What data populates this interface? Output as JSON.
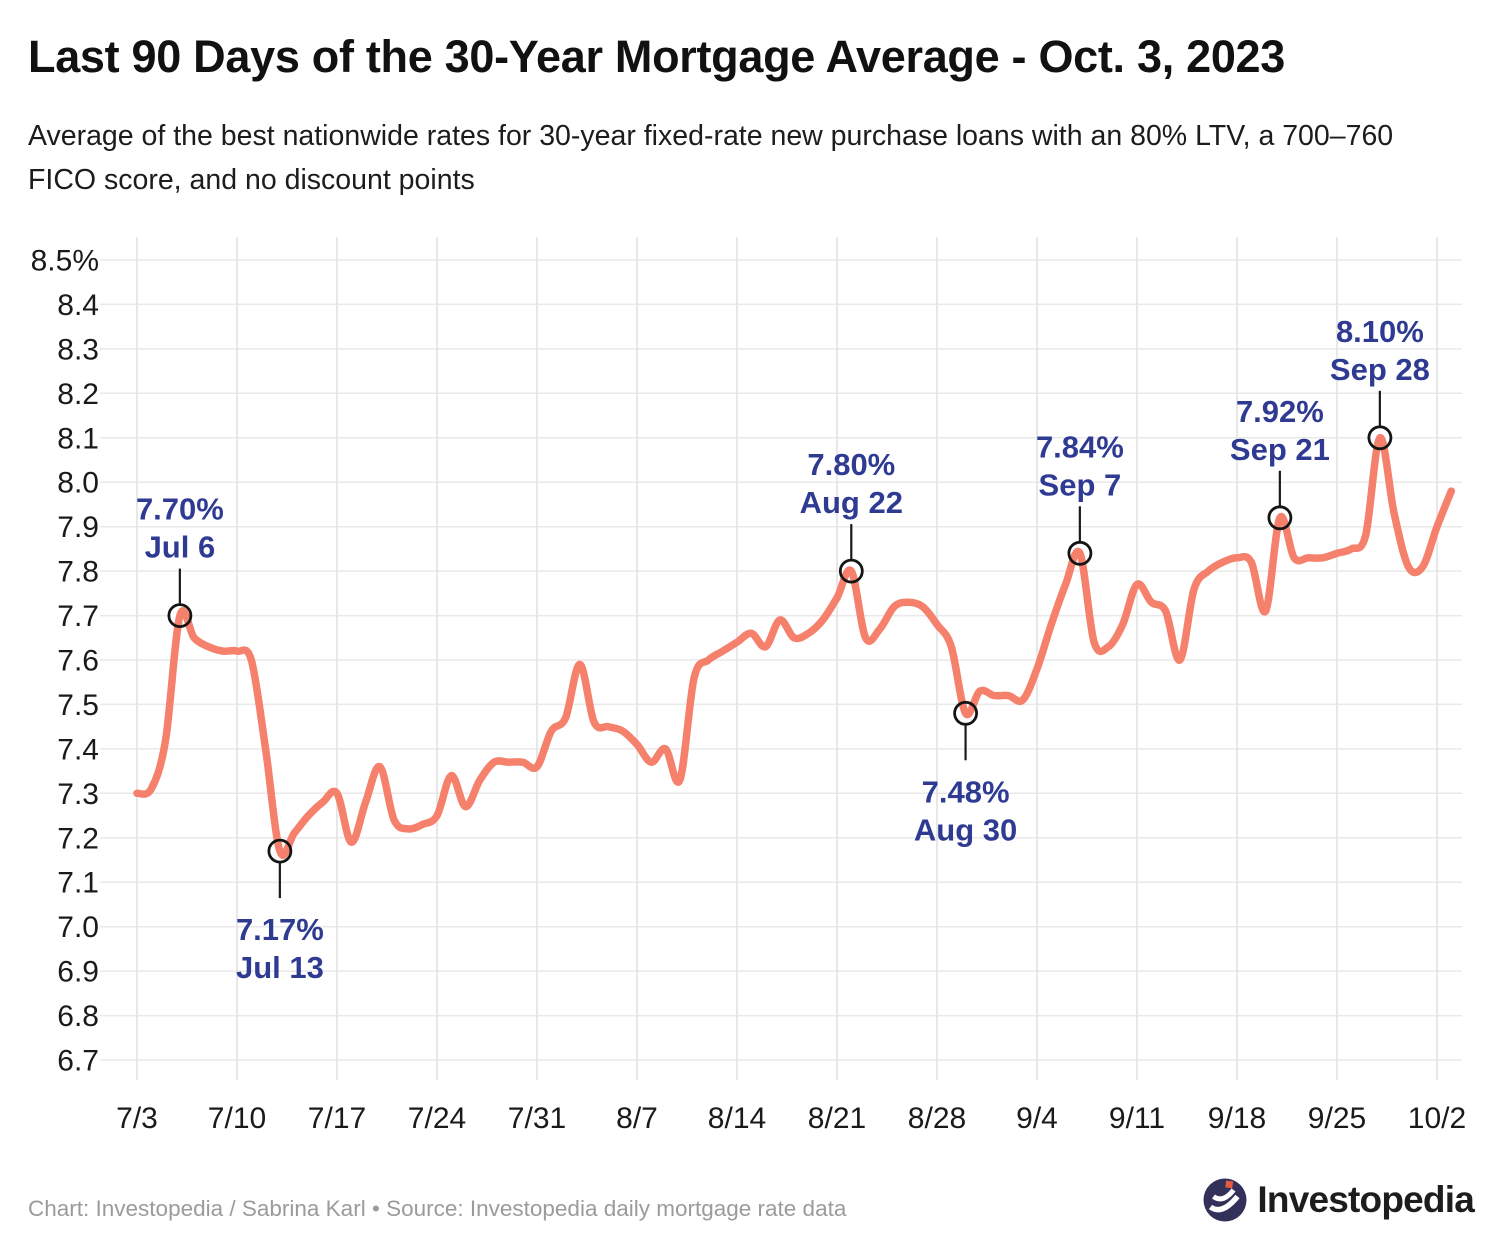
{
  "page": {
    "title": "Last 90 Days of the 30-Year Mortgage Average - Oct. 3, 2023",
    "subtitle": "Average of the best nationwide rates for 30-year fixed-rate new purchase loans with an 80% LTV, a 700–760 FICO score, and no discount points"
  },
  "footer": {
    "credit": "Chart: Investopedia / Sabrina Karl • Source: Investopedia daily mortgage rate data",
    "brand": "Investopedia"
  },
  "colors": {
    "line": "#F5816C",
    "annotation": "#2F3B92",
    "grid_h": "#E9E9E9",
    "grid_v": "#E3E3E3",
    "axis_text": "#1A1A1A",
    "marker_stroke": "#151515",
    "callout": "#1a1a1a",
    "footer_text": "#9B9B9B",
    "logo_circle": "#31315A",
    "logo_dot": "#E55A3C"
  },
  "chart_data": {
    "type": "line",
    "title": "Last 90 Days of the 30-Year Mortgage Average - Oct. 3, 2023",
    "series_name": "30-year fixed mortgage average (%)",
    "ylim": [
      6.7,
      8.5
    ],
    "ytick_step": 0.1,
    "ytick_top_label": "8.5%",
    "grid": true,
    "xtick_labels": [
      "7/3",
      "7/10",
      "7/17",
      "7/24",
      "7/31",
      "8/7",
      "8/14",
      "8/21",
      "8/28",
      "9/4",
      "9/11",
      "9/18",
      "9/25",
      "10/2"
    ],
    "xtick_every_days": 7,
    "x": [
      "Jul 3",
      "Jul 4",
      "Jul 5",
      "Jul 6",
      "Jul 7",
      "Jul 8",
      "Jul 9",
      "Jul 10",
      "Jul 11",
      "Jul 12",
      "Jul 13",
      "Jul 14",
      "Jul 15",
      "Jul 16",
      "Jul 17",
      "Jul 18",
      "Jul 19",
      "Jul 20",
      "Jul 21",
      "Jul 22",
      "Jul 23",
      "Jul 24",
      "Jul 25",
      "Jul 26",
      "Jul 27",
      "Jul 28",
      "Jul 29",
      "Jul 30",
      "Jul 31",
      "Aug 1",
      "Aug 2",
      "Aug 3",
      "Aug 4",
      "Aug 5",
      "Aug 6",
      "Aug 7",
      "Aug 8",
      "Aug 9",
      "Aug 10",
      "Aug 11",
      "Aug 12",
      "Aug 13",
      "Aug 14",
      "Aug 15",
      "Aug 16",
      "Aug 17",
      "Aug 18",
      "Aug 19",
      "Aug 20",
      "Aug 21",
      "Aug 22",
      "Aug 23",
      "Aug 24",
      "Aug 25",
      "Aug 26",
      "Aug 27",
      "Aug 28",
      "Aug 29",
      "Aug 30",
      "Aug 31",
      "Sep 1",
      "Sep 2",
      "Sep 3",
      "Sep 4",
      "Sep 5",
      "Sep 6",
      "Sep 7",
      "Sep 8",
      "Sep 9",
      "Sep 10",
      "Sep 11",
      "Sep 12",
      "Sep 13",
      "Sep 14",
      "Sep 15",
      "Sep 16",
      "Sep 17",
      "Sep 18",
      "Sep 19",
      "Sep 20",
      "Sep 21",
      "Sep 22",
      "Sep 23",
      "Sep 24",
      "Sep 25",
      "Sep 26",
      "Sep 27",
      "Sep 28",
      "Sep 29",
      "Sep 30",
      "Oct 1",
      "Oct 2",
      "Oct 3"
    ],
    "values": [
      7.3,
      7.31,
      7.42,
      7.7,
      7.65,
      7.63,
      7.62,
      7.62,
      7.6,
      7.4,
      7.17,
      7.21,
      7.25,
      7.28,
      7.3,
      7.19,
      7.28,
      7.36,
      7.24,
      7.22,
      7.23,
      7.25,
      7.34,
      7.27,
      7.33,
      7.37,
      7.37,
      7.37,
      7.36,
      7.44,
      7.47,
      7.59,
      7.46,
      7.45,
      7.44,
      7.41,
      7.37,
      7.4,
      7.33,
      7.56,
      7.6,
      7.62,
      7.64,
      7.66,
      7.63,
      7.69,
      7.65,
      7.66,
      7.69,
      7.74,
      7.8,
      7.65,
      7.67,
      7.72,
      7.73,
      7.72,
      7.68,
      7.63,
      7.48,
      7.53,
      7.52,
      7.52,
      7.51,
      7.58,
      7.68,
      7.77,
      7.84,
      7.64,
      7.63,
      7.68,
      7.77,
      7.73,
      7.71,
      7.6,
      7.76,
      7.8,
      7.82,
      7.83,
      7.82,
      7.71,
      7.92,
      7.83,
      7.83,
      7.83,
      7.84,
      7.85,
      7.88,
      8.1,
      7.93,
      7.81,
      7.81,
      7.9,
      7.98
    ],
    "annotations": [
      {
        "value": "7.70%",
        "date": "Jul 6",
        "index": 3,
        "rate": 7.7,
        "side": "above"
      },
      {
        "value": "7.17%",
        "date": "Jul 13",
        "index": 10,
        "rate": 7.17,
        "side": "below"
      },
      {
        "value": "7.80%",
        "date": "Aug 22",
        "index": 50,
        "rate": 7.8,
        "side": "above"
      },
      {
        "value": "7.48%",
        "date": "Aug 30",
        "index": 58,
        "rate": 7.48,
        "side": "below"
      },
      {
        "value": "7.84%",
        "date": "Sep 7",
        "index": 66,
        "rate": 7.84,
        "side": "above"
      },
      {
        "value": "7.92%",
        "date": "Sep 21",
        "index": 80,
        "rate": 7.92,
        "side": "above"
      },
      {
        "value": "8.10%",
        "date": "Sep 28",
        "index": 87,
        "rate": 8.1,
        "side": "above"
      }
    ]
  }
}
